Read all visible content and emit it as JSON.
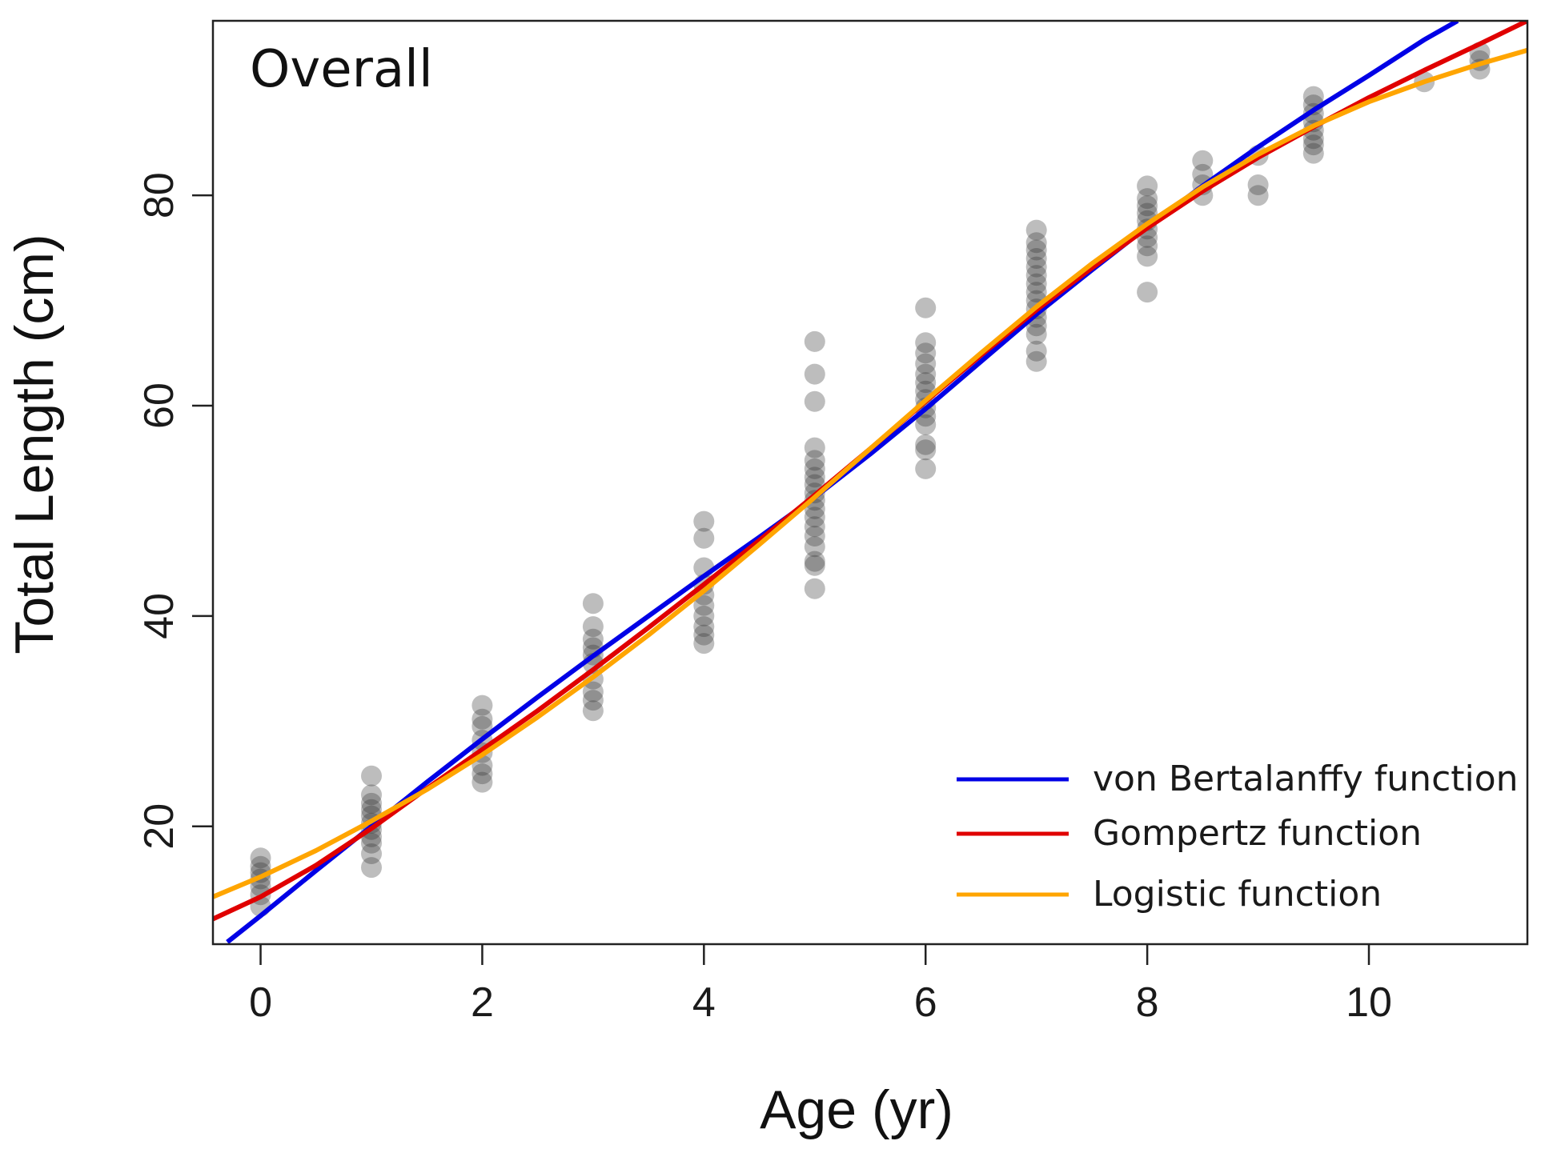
{
  "chart_data": {
    "type": "scatter",
    "title": "",
    "panel_label": "Overall",
    "xlabel": "Age (yr)",
    "ylabel": "Total Length (cm)",
    "xlim": [
      -0.43,
      11.43
    ],
    "ylim": [
      8.8,
      96.6
    ],
    "x_ticks": [
      0,
      2,
      4,
      6,
      8,
      10
    ],
    "y_ticks": [
      20,
      40,
      60,
      80
    ],
    "grid": false,
    "legend_position": "bottom-right",
    "point_color": "#333333",
    "points": [
      {
        "x": 0,
        "y": 17.0
      },
      {
        "x": 0,
        "y": 16.2
      },
      {
        "x": 0,
        "y": 15.6
      },
      {
        "x": 0,
        "y": 15.0
      },
      {
        "x": 0,
        "y": 14.3
      },
      {
        "x": 0,
        "y": 13.5
      },
      {
        "x": 0,
        "y": 12.4
      },
      {
        "x": 1,
        "y": 24.8
      },
      {
        "x": 1,
        "y": 23.0
      },
      {
        "x": 1,
        "y": 22.2
      },
      {
        "x": 1,
        "y": 21.6
      },
      {
        "x": 1,
        "y": 21.0
      },
      {
        "x": 1,
        "y": 20.3
      },
      {
        "x": 1,
        "y": 19.7
      },
      {
        "x": 1,
        "y": 19.0
      },
      {
        "x": 1,
        "y": 18.4
      },
      {
        "x": 1,
        "y": 17.4
      },
      {
        "x": 1,
        "y": 16.1
      },
      {
        "x": 2,
        "y": 31.5
      },
      {
        "x": 2,
        "y": 30.2
      },
      {
        "x": 2,
        "y": 29.5
      },
      {
        "x": 2,
        "y": 28.2
      },
      {
        "x": 2,
        "y": 27.0
      },
      {
        "x": 2,
        "y": 25.8
      },
      {
        "x": 2,
        "y": 25.0
      },
      {
        "x": 2,
        "y": 24.2
      },
      {
        "x": 3,
        "y": 41.2
      },
      {
        "x": 3,
        "y": 39.0
      },
      {
        "x": 3,
        "y": 37.8
      },
      {
        "x": 3,
        "y": 37.0
      },
      {
        "x": 3,
        "y": 36.3
      },
      {
        "x": 3,
        "y": 35.5
      },
      {
        "x": 3,
        "y": 34.0
      },
      {
        "x": 3,
        "y": 32.8
      },
      {
        "x": 3,
        "y": 32.0
      },
      {
        "x": 3,
        "y": 31.0
      },
      {
        "x": 4,
        "y": 49.0
      },
      {
        "x": 4,
        "y": 47.4
      },
      {
        "x": 4,
        "y": 44.6
      },
      {
        "x": 4,
        "y": 43.0
      },
      {
        "x": 4,
        "y": 42.0
      },
      {
        "x": 4,
        "y": 41.0
      },
      {
        "x": 4,
        "y": 40.0
      },
      {
        "x": 4,
        "y": 39.0
      },
      {
        "x": 4,
        "y": 38.2
      },
      {
        "x": 4,
        "y": 37.4
      },
      {
        "x": 5,
        "y": 66.1
      },
      {
        "x": 5,
        "y": 63.0
      },
      {
        "x": 5,
        "y": 60.4
      },
      {
        "x": 5,
        "y": 56.0
      },
      {
        "x": 5,
        "y": 54.8
      },
      {
        "x": 5,
        "y": 54.0
      },
      {
        "x": 5,
        "y": 53.2
      },
      {
        "x": 5,
        "y": 52.5
      },
      {
        "x": 5,
        "y": 51.7
      },
      {
        "x": 5,
        "y": 51.0
      },
      {
        "x": 5,
        "y": 50.2
      },
      {
        "x": 5,
        "y": 49.4
      },
      {
        "x": 5,
        "y": 48.5
      },
      {
        "x": 5,
        "y": 47.6
      },
      {
        "x": 5,
        "y": 46.6
      },
      {
        "x": 5,
        "y": 45.2
      },
      {
        "x": 5,
        "y": 44.8
      },
      {
        "x": 5,
        "y": 42.6
      },
      {
        "x": 6,
        "y": 69.3
      },
      {
        "x": 6,
        "y": 66.0
      },
      {
        "x": 6,
        "y": 65.0
      },
      {
        "x": 6,
        "y": 64.0
      },
      {
        "x": 6,
        "y": 63.0
      },
      {
        "x": 6,
        "y": 62.2
      },
      {
        "x": 6,
        "y": 61.4
      },
      {
        "x": 6,
        "y": 60.6
      },
      {
        "x": 6,
        "y": 59.8
      },
      {
        "x": 6,
        "y": 59.0
      },
      {
        "x": 6,
        "y": 58.2
      },
      {
        "x": 6,
        "y": 56.3
      },
      {
        "x": 6,
        "y": 55.8
      },
      {
        "x": 6,
        "y": 54.0
      },
      {
        "x": 7,
        "y": 76.7
      },
      {
        "x": 7,
        "y": 75.5
      },
      {
        "x": 7,
        "y": 74.8
      },
      {
        "x": 7,
        "y": 74.0
      },
      {
        "x": 7,
        "y": 73.2
      },
      {
        "x": 7,
        "y": 72.4
      },
      {
        "x": 7,
        "y": 71.6
      },
      {
        "x": 7,
        "y": 70.8
      },
      {
        "x": 7,
        "y": 70.0
      },
      {
        "x": 7,
        "y": 69.2
      },
      {
        "x": 7,
        "y": 68.4
      },
      {
        "x": 7,
        "y": 67.6
      },
      {
        "x": 7,
        "y": 66.8
      },
      {
        "x": 7,
        "y": 65.2
      },
      {
        "x": 7,
        "y": 64.2
      },
      {
        "x": 8,
        "y": 80.9
      },
      {
        "x": 8,
        "y": 79.7
      },
      {
        "x": 8,
        "y": 79.0
      },
      {
        "x": 8,
        "y": 78.3
      },
      {
        "x": 8,
        "y": 77.6
      },
      {
        "x": 8,
        "y": 76.8
      },
      {
        "x": 8,
        "y": 76.0
      },
      {
        "x": 8,
        "y": 75.2
      },
      {
        "x": 8,
        "y": 74.2
      },
      {
        "x": 8,
        "y": 70.8
      },
      {
        "x": 8.5,
        "y": 83.3
      },
      {
        "x": 8.5,
        "y": 82.0
      },
      {
        "x": 8.5,
        "y": 81.0
      },
      {
        "x": 8.5,
        "y": 80.0
      },
      {
        "x": 9,
        "y": 83.8
      },
      {
        "x": 9,
        "y": 81.0
      },
      {
        "x": 9,
        "y": 80.0
      },
      {
        "x": 9.5,
        "y": 89.4
      },
      {
        "x": 9.5,
        "y": 88.6
      },
      {
        "x": 9.5,
        "y": 87.8
      },
      {
        "x": 9.5,
        "y": 87.0
      },
      {
        "x": 9.5,
        "y": 86.2
      },
      {
        "x": 9.5,
        "y": 85.4
      },
      {
        "x": 9.5,
        "y": 84.8
      },
      {
        "x": 9.5,
        "y": 84.0
      },
      {
        "x": 10.5,
        "y": 90.8
      },
      {
        "x": 11,
        "y": 93.6
      },
      {
        "x": 11,
        "y": 92.8
      },
      {
        "x": 11,
        "y": 92.0
      }
    ],
    "series": [
      {
        "name": "von Bertalanffy function",
        "color": "#0000e6",
        "x": [
          -0.3,
          0,
          0.5,
          1,
          1.5,
          2,
          2.5,
          3,
          3.5,
          4,
          4.5,
          5,
          5.5,
          6,
          6.5,
          7,
          7.5,
          8,
          8.5,
          9,
          9.5,
          10,
          10.5,
          10.8
        ],
        "y": [
          9.0,
          11.5,
          15.8,
          20.0,
          24.2,
          28.3,
          32.3,
          36.2,
          40.0,
          43.8,
          47.5,
          51.3,
          55.4,
          59.7,
          64.2,
          68.7,
          72.9,
          77.0,
          80.9,
          84.6,
          88.1,
          91.4,
          94.8,
          96.6
        ]
      },
      {
        "name": "Gompertz function",
        "color": "#e00000",
        "x": [
          -0.43,
          0,
          0.5,
          1,
          1.5,
          2,
          2.5,
          3,
          3.5,
          4,
          4.5,
          5,
          5.5,
          6,
          6.5,
          7,
          7.5,
          8,
          8.5,
          9,
          9.5,
          10,
          10.5,
          11,
          11.43
        ],
        "y": [
          11.2,
          13.3,
          16.3,
          19.8,
          23.6,
          27.3,
          31.0,
          34.9,
          38.9,
          43.0,
          47.2,
          51.5,
          55.9,
          60.4,
          64.8,
          69.1,
          73.1,
          76.9,
          80.4,
          83.6,
          86.5,
          89.3,
          91.9,
          94.4,
          96.6
        ]
      },
      {
        "name": "Logistic function",
        "color": "#ffa500",
        "x": [
          -0.43,
          0,
          0.5,
          1,
          1.5,
          2,
          2.5,
          3,
          3.5,
          4,
          4.5,
          5,
          5.5,
          6,
          6.5,
          7,
          7.5,
          8,
          8.5,
          9,
          9.5,
          10,
          10.5,
          11,
          11.43
        ],
        "y": [
          13.3,
          15.2,
          17.7,
          20.5,
          23.5,
          26.8,
          30.4,
          34.2,
          38.2,
          42.4,
          46.8,
          51.3,
          55.9,
          60.5,
          65.0,
          69.4,
          73.5,
          77.3,
          80.8,
          83.9,
          86.6,
          88.9,
          90.8,
          92.5,
          93.8
        ]
      }
    ]
  }
}
